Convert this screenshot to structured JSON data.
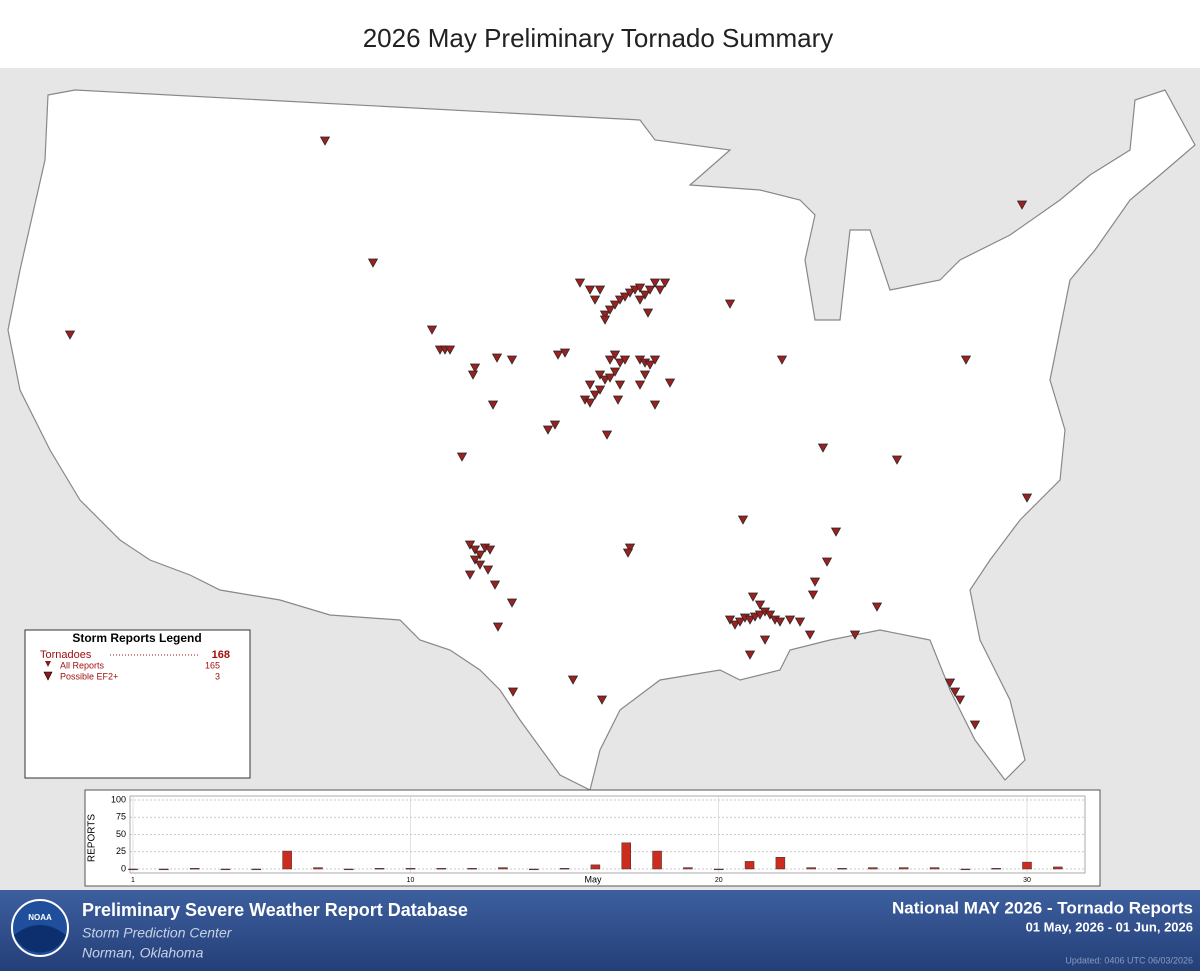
{
  "header": {
    "title": "2026 May Preliminary Tornado Summary"
  },
  "legend": {
    "title": "Storm Reports Legend",
    "rows": [
      {
        "label": "Tornadoes",
        "value": "168"
      },
      {
        "label": "All Reports",
        "value": "165"
      },
      {
        "label": "Possible EF2+",
        "value": "3"
      }
    ]
  },
  "chart_data": {
    "type": "bar",
    "ylabel": "REPORTS",
    "xlabel": "May",
    "categories": [
      "1",
      null,
      null,
      null,
      null,
      null,
      null,
      null,
      null,
      "10",
      null,
      null,
      null,
      null,
      null,
      null,
      null,
      null,
      null,
      "20",
      null,
      null,
      null,
      null,
      null,
      null,
      null,
      null,
      null,
      "30",
      null
    ],
    "values": [
      0,
      0,
      1,
      0,
      0,
      26,
      2,
      0,
      1,
      1,
      1,
      1,
      2,
      0,
      1,
      6,
      38,
      26,
      2,
      0,
      11,
      17,
      2,
      1,
      2,
      2,
      2,
      0,
      1,
      10,
      3
    ],
    "color": "#cc2b1e",
    "ylim": [
      0,
      100
    ],
    "yticks": [
      0,
      25,
      50,
      75,
      100
    ],
    "grid": true
  },
  "footer": {
    "left_title": "Preliminary Severe Weather Report Database",
    "left_sub1": "Storm Prediction Center",
    "left_sub2": "Norman, Oklahoma",
    "right_title": "National MAY 2026 - Tornado Reports",
    "right_dates": "01 May, 2026 - 01 Jun, 2026",
    "updated": "Updated: 0406 UTC 06/03/2026",
    "logo": "NOAA"
  }
}
